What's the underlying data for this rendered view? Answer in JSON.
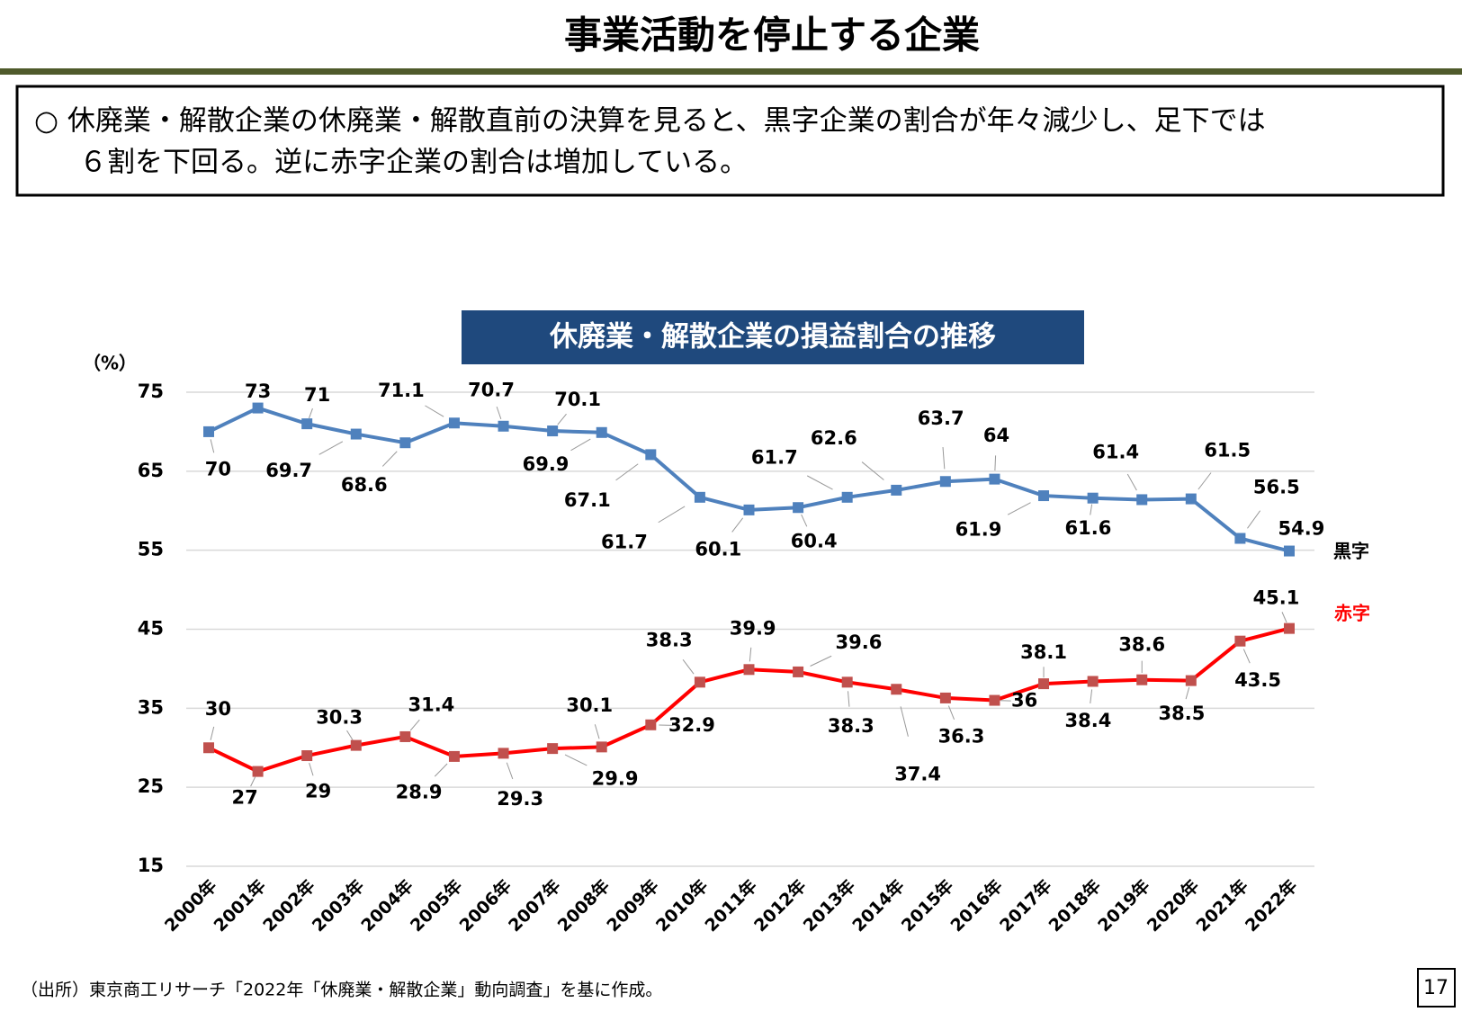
{
  "header": {
    "title": "事業活動を停止する企業"
  },
  "summary": {
    "lines": [
      "○ 休廃業・解散企業の休廃業・解散直前の決算を見ると、黒字企業の割合が年々減少し、足下では",
      "６割を下回る。逆に赤字企業の割合は増加している。"
    ]
  },
  "chart_data": {
    "type": "line",
    "title": "休廃業・解散企業の損益割合の推移",
    "y_label": "（%）",
    "categories": [
      "2000年",
      "2001年",
      "2002年",
      "2003年",
      "2004年",
      "2005年",
      "2006年",
      "2007年",
      "2008年",
      "2009年",
      "2010年",
      "2011年",
      "2012年",
      "2013年",
      "2014年",
      "2015年",
      "2016年",
      "2017年",
      "2018年",
      "2019年",
      "2020年",
      "2021年",
      "2022年"
    ],
    "series": [
      {
        "name": "黒字",
        "color": "#4f81bd",
        "marker_color": "#4f81bd",
        "label_color": "#000000",
        "values": [
          70,
          73,
          71,
          69.7,
          68.6,
          71.1,
          70.7,
          70.1,
          69.9,
          67.1,
          61.7,
          60.1,
          60.4,
          61.7,
          62.6,
          63.7,
          64,
          61.9,
          61.6,
          61.4,
          61.5,
          56.5,
          54.9
        ]
      },
      {
        "name": "赤字",
        "color": "#ff0000",
        "marker_color": "#c0504d",
        "label_color": "#ff0000",
        "values": [
          30,
          27,
          29,
          30.3,
          31.4,
          28.9,
          29.3,
          29.9,
          30.1,
          32.9,
          38.3,
          39.9,
          39.6,
          38.3,
          37.4,
          36.3,
          36,
          38.1,
          38.4,
          38.6,
          38.5,
          43.5,
          45.1
        ]
      }
    ],
    "ylim": [
      15,
      75
    ],
    "yticks": [
      15,
      25,
      35,
      45,
      55,
      65,
      75
    ],
    "grid": true
  },
  "footer": {
    "source": "（出所）東京商工リサーチ「2022年「休廃業・解散企業」動向調査」を基に作成。",
    "page": "17"
  }
}
